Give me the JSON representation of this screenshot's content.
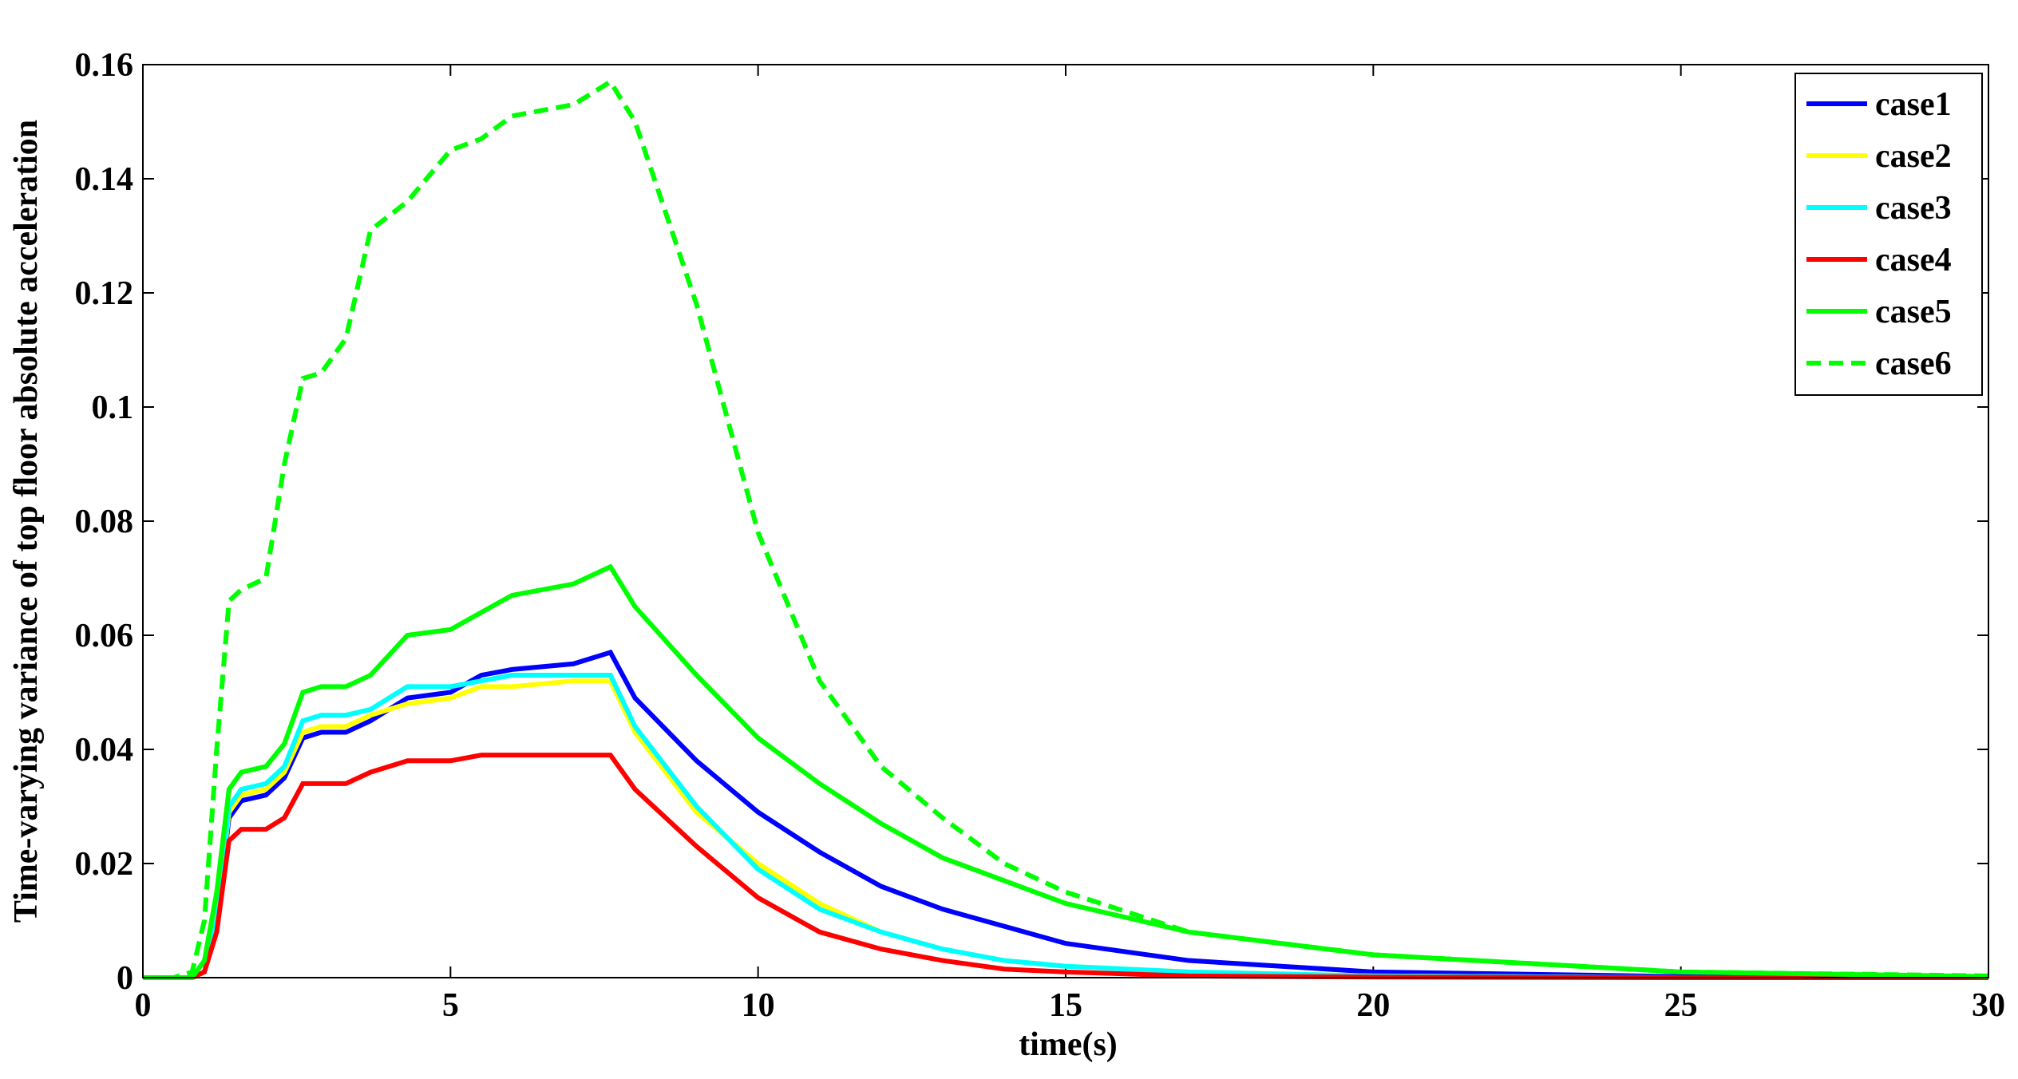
{
  "chart_data": {
    "type": "line",
    "xlabel": "time(s)",
    "ylabel": "Time-varying variance of top floor absolute acceleration",
    "x": [
      0,
      0.5,
      0.8,
      1,
      1.2,
      1.4,
      1.6,
      2,
      2.3,
      2.6,
      2.9,
      3.3,
      3.7,
      4.3,
      5,
      5.5,
      6,
      7,
      7.6,
      8,
      9,
      10,
      11,
      12,
      13,
      14,
      15,
      17,
      20,
      25,
      30
    ],
    "series": [
      {
        "name": "case1",
        "color": "#0000ff",
        "dash": "solid",
        "values": [
          0,
          0,
          0,
          0.001,
          0.01,
          0.028,
          0.031,
          0.032,
          0.035,
          0.042,
          0.043,
          0.043,
          0.045,
          0.049,
          0.05,
          0.053,
          0.054,
          0.055,
          0.057,
          0.049,
          0.038,
          0.029,
          0.022,
          0.016,
          0.012,
          0.009,
          0.006,
          0.003,
          0.001,
          0.0002,
          0
        ]
      },
      {
        "name": "case2",
        "color": "#ffff00",
        "dash": "solid",
        "values": [
          0,
          0,
          0,
          0.001,
          0.01,
          0.029,
          0.032,
          0.033,
          0.036,
          0.043,
          0.044,
          0.044,
          0.046,
          0.048,
          0.049,
          0.051,
          0.051,
          0.052,
          0.052,
          0.043,
          0.029,
          0.02,
          0.013,
          0.008,
          0.005,
          0.003,
          0.002,
          0.001,
          0.0003,
          0,
          0
        ]
      },
      {
        "name": "case3",
        "color": "#00ffff",
        "dash": "solid",
        "values": [
          0,
          0,
          0,
          0.001,
          0.01,
          0.03,
          0.033,
          0.034,
          0.037,
          0.045,
          0.046,
          0.046,
          0.047,
          0.051,
          0.051,
          0.052,
          0.053,
          0.053,
          0.053,
          0.044,
          0.03,
          0.019,
          0.012,
          0.008,
          0.005,
          0.003,
          0.002,
          0.001,
          0.0003,
          0,
          0
        ]
      },
      {
        "name": "case4",
        "color": "#ff0000",
        "dash": "solid",
        "values": [
          0,
          0,
          0,
          0.001,
          0.008,
          0.024,
          0.026,
          0.026,
          0.028,
          0.034,
          0.034,
          0.034,
          0.036,
          0.038,
          0.038,
          0.039,
          0.039,
          0.039,
          0.039,
          0.033,
          0.023,
          0.014,
          0.008,
          0.005,
          0.003,
          0.0015,
          0.001,
          0.0003,
          0.0001,
          0,
          0
        ]
      },
      {
        "name": "case5",
        "color": "#00ff00",
        "dash": "solid",
        "values": [
          0,
          0,
          0,
          0.003,
          0.015,
          0.033,
          0.036,
          0.037,
          0.041,
          0.05,
          0.051,
          0.051,
          0.053,
          0.06,
          0.061,
          0.064,
          0.067,
          0.069,
          0.072,
          0.065,
          0.053,
          0.042,
          0.034,
          0.027,
          0.021,
          0.017,
          0.013,
          0.008,
          0.004,
          0.001,
          0.0002
        ]
      },
      {
        "name": "case6",
        "color": "#00ff00",
        "dash": "dashed",
        "values": [
          0,
          0,
          0.001,
          0.01,
          0.04,
          0.066,
          0.068,
          0.07,
          0.09,
          0.105,
          0.106,
          0.112,
          0.131,
          0.136,
          0.145,
          0.147,
          0.151,
          0.153,
          0.157,
          0.15,
          0.118,
          0.078,
          0.052,
          0.037,
          0.028,
          0.02,
          0.015,
          0.008,
          0.004,
          0.001,
          0.0003
        ]
      }
    ],
    "xlim": [
      0,
      30
    ],
    "xticks": [
      0,
      5,
      10,
      15,
      20,
      25,
      30
    ],
    "ylim": [
      0,
      0.16
    ],
    "yticks": [
      0,
      0.02,
      0.04,
      0.06,
      0.08,
      0.1,
      0.12,
      0.14,
      0.16
    ],
    "legend": "upper right"
  }
}
